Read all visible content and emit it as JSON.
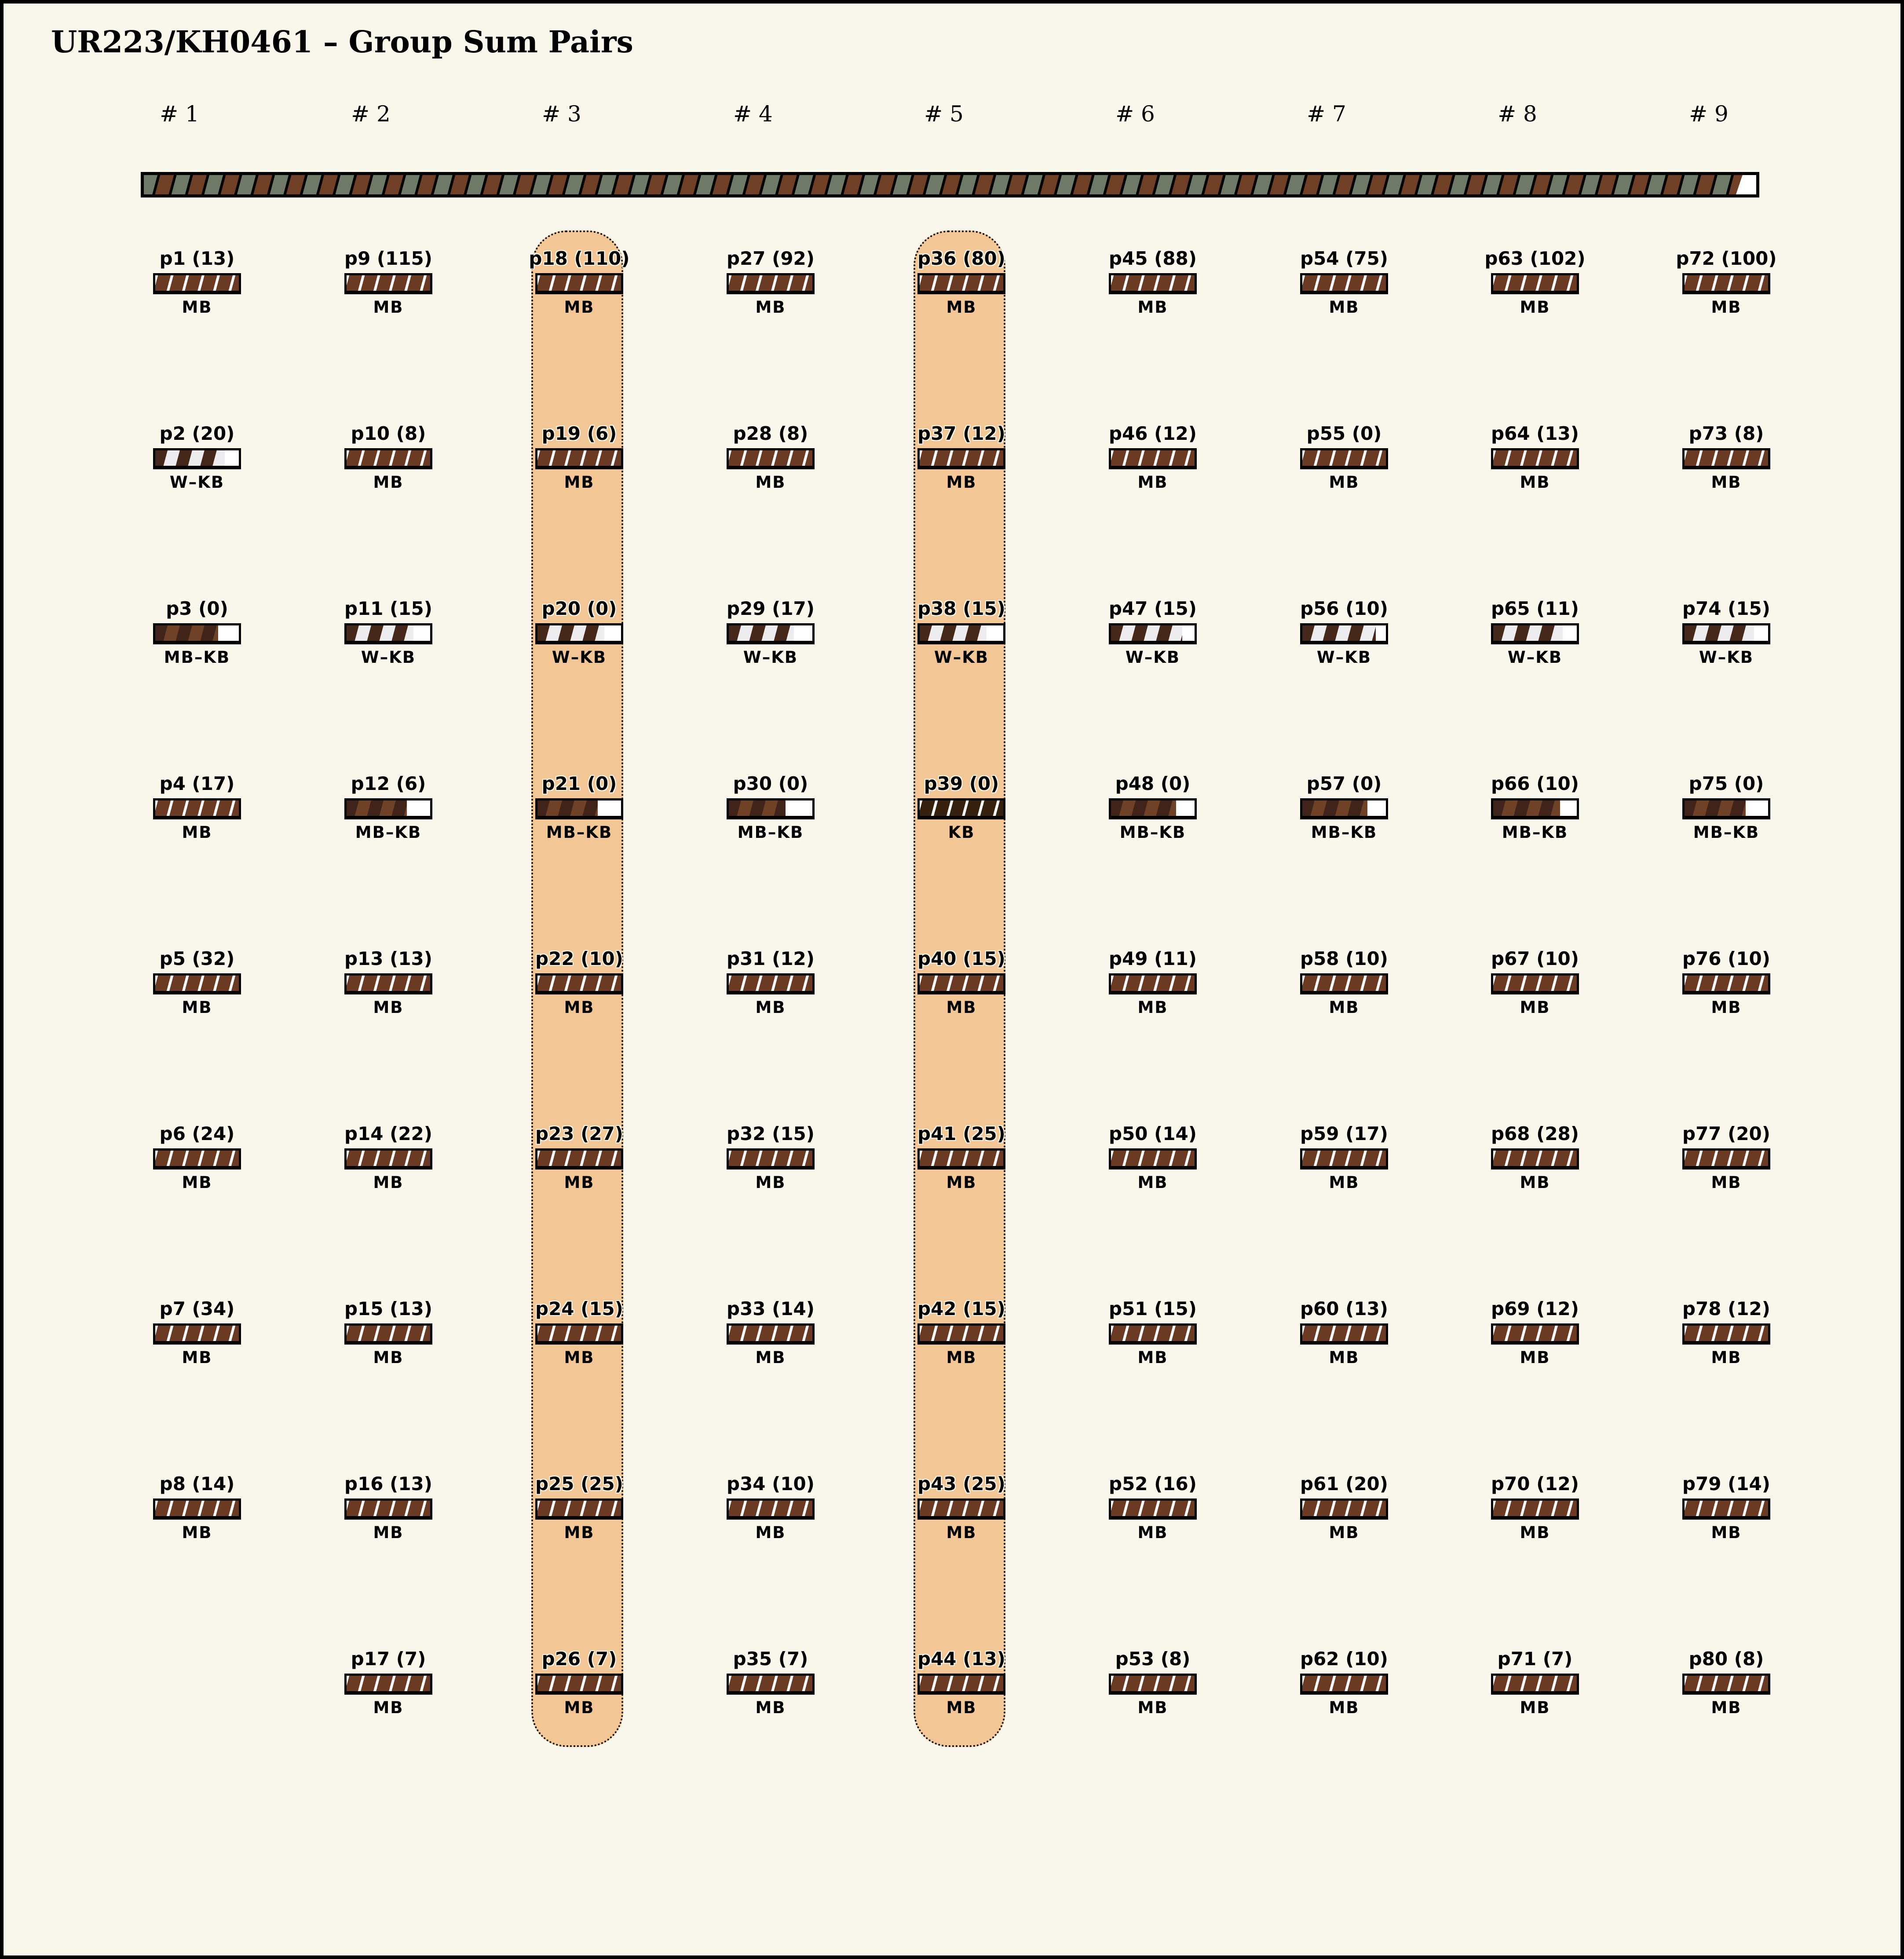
{
  "title": "UR223/KH0461 – Group Sum Pairs",
  "top_bar": {
    "name": "group-sum-bar",
    "stripe_color_a": "#6e7a67",
    "stripe_color_b": "#6f4026",
    "separator_color": "#000000",
    "end_segment_color": "#ffffff"
  },
  "highlight": {
    "color": "#f3c795",
    "highlighted_columns": [
      "# 3",
      "# 5"
    ]
  },
  "palette": {
    "background": "#faf8ed",
    "mb_brown": "#6b3a22",
    "kb_dark_brown": "#36210f",
    "wkb_dark": "#46281b",
    "wkb_light": "#edecef",
    "mbkb_dark": "#40241a",
    "mbkb_mid": "#6f4227",
    "bar_border": "#000000"
  },
  "kinds_legend": [
    "MB",
    "W–KB",
    "MB–KB",
    "KB"
  ],
  "columns": [
    {
      "header": "# 1",
      "highlight": false,
      "items": [
        {
          "label": "p1 (13)",
          "value": 13,
          "kind": "MB",
          "kind_key": "mb",
          "fill": 1
        },
        {
          "label": "p2 (20)",
          "value": 20,
          "kind": "W–KB",
          "kind_key": "wkb",
          "fill": 0.83
        },
        {
          "label": "p3 (0)",
          "value": 0,
          "kind": "MB–KB",
          "kind_key": "mbkb",
          "fill": 0.75
        },
        {
          "label": "p4 (17)",
          "value": 17,
          "kind": "MB",
          "kind_key": "mb",
          "fill": 1
        },
        {
          "label": "p5 (32)",
          "value": 32,
          "kind": "MB",
          "kind_key": "mb",
          "fill": 1
        },
        {
          "label": "p6 (24)",
          "value": 24,
          "kind": "MB",
          "kind_key": "mb",
          "fill": 1
        },
        {
          "label": "p7 (34)",
          "value": 34,
          "kind": "MB",
          "kind_key": "mb",
          "fill": 1
        },
        {
          "label": "p8 (14)",
          "value": 14,
          "kind": "MB",
          "kind_key": "mb",
          "fill": 1
        }
      ]
    },
    {
      "header": "# 2",
      "highlight": false,
      "items": [
        {
          "label": "p9 (115)",
          "value": 115,
          "kind": "MB",
          "kind_key": "mb",
          "fill": 1
        },
        {
          "label": "p10 (8)",
          "value": 8,
          "kind": "MB",
          "kind_key": "mb",
          "fill": 1
        },
        {
          "label": "p11 (15)",
          "value": 15,
          "kind": "W–KB",
          "kind_key": "wkb",
          "fill": 0.8
        },
        {
          "label": "p12 (6)",
          "value": 6,
          "kind": "MB–KB",
          "kind_key": "mbkb",
          "fill": 0.72
        },
        {
          "label": "p13 (13)",
          "value": 13,
          "kind": "MB",
          "kind_key": "mb",
          "fill": 1
        },
        {
          "label": "p14 (22)",
          "value": 22,
          "kind": "MB",
          "kind_key": "mb",
          "fill": 1
        },
        {
          "label": "p15 (13)",
          "value": 13,
          "kind": "MB",
          "kind_key": "mb",
          "fill": 1
        },
        {
          "label": "p16 (13)",
          "value": 13,
          "kind": "MB",
          "kind_key": "mb",
          "fill": 1
        },
        {
          "label": "p17 (7)",
          "value": 7,
          "kind": "MB",
          "kind_key": "mb",
          "fill": 1
        }
      ]
    },
    {
      "header": "# 3",
      "highlight": true,
      "items": [
        {
          "label": "p18 (110)",
          "value": 110,
          "kind": "MB",
          "kind_key": "mb",
          "fill": 1
        },
        {
          "label": "p19 (6)",
          "value": 6,
          "kind": "MB",
          "kind_key": "mb",
          "fill": 1
        },
        {
          "label": "p20 (0)",
          "value": 0,
          "kind": "W–KB",
          "kind_key": "wkb",
          "fill": 0.8
        },
        {
          "label": "p21 (0)",
          "value": 0,
          "kind": "MB–KB",
          "kind_key": "mbkb",
          "fill": 0.72
        },
        {
          "label": "p22 (10)",
          "value": 10,
          "kind": "MB",
          "kind_key": "mb",
          "fill": 1
        },
        {
          "label": "p23 (27)",
          "value": 27,
          "kind": "MB",
          "kind_key": "mb",
          "fill": 1
        },
        {
          "label": "p24 (15)",
          "value": 15,
          "kind": "MB",
          "kind_key": "mb",
          "fill": 1
        },
        {
          "label": "p25 (25)",
          "value": 25,
          "kind": "MB",
          "kind_key": "mb",
          "fill": 1
        },
        {
          "label": "p26 (7)",
          "value": 7,
          "kind": "MB",
          "kind_key": "mb",
          "fill": 1
        }
      ]
    },
    {
      "header": "# 4",
      "highlight": false,
      "items": [
        {
          "label": "p27 (92)",
          "value": 92,
          "kind": "MB",
          "kind_key": "mb",
          "fill": 1
        },
        {
          "label": "p28 (8)",
          "value": 8,
          "kind": "MB",
          "kind_key": "mb",
          "fill": 1
        },
        {
          "label": "p29 (17)",
          "value": 17,
          "kind": "W–KB",
          "kind_key": "wkb",
          "fill": 0.78
        },
        {
          "label": "p30 (0)",
          "value": 0,
          "kind": "MB–KB",
          "kind_key": "mbkb",
          "fill": 0.68
        },
        {
          "label": "p31 (12)",
          "value": 12,
          "kind": "MB",
          "kind_key": "mb",
          "fill": 1
        },
        {
          "label": "p32 (15)",
          "value": 15,
          "kind": "MB",
          "kind_key": "mb",
          "fill": 1
        },
        {
          "label": "p33 (14)",
          "value": 14,
          "kind": "MB",
          "kind_key": "mb",
          "fill": 1
        },
        {
          "label": "p34 (10)",
          "value": 10,
          "kind": "MB",
          "kind_key": "mb",
          "fill": 1
        },
        {
          "label": "p35 (7)",
          "value": 7,
          "kind": "MB",
          "kind_key": "mb",
          "fill": 1
        }
      ]
    },
    {
      "header": "# 5",
      "highlight": true,
      "items": [
        {
          "label": "p36 (80)",
          "value": 80,
          "kind": "MB",
          "kind_key": "mb",
          "fill": 1
        },
        {
          "label": "p37 (12)",
          "value": 12,
          "kind": "MB",
          "kind_key": "mb",
          "fill": 1
        },
        {
          "label": "p38 (15)",
          "value": 15,
          "kind": "W–KB",
          "kind_key": "wkb",
          "fill": 0.8
        },
        {
          "label": "p39 (0)",
          "value": 0,
          "kind": "KB",
          "kind_key": "kb",
          "fill": 1
        },
        {
          "label": "p40 (15)",
          "value": 15,
          "kind": "MB",
          "kind_key": "mb",
          "fill": 1
        },
        {
          "label": "p41 (25)",
          "value": 25,
          "kind": "MB",
          "kind_key": "mb",
          "fill": 1
        },
        {
          "label": "p42 (15)",
          "value": 15,
          "kind": "MB",
          "kind_key": "mb",
          "fill": 1
        },
        {
          "label": "p43 (25)",
          "value": 25,
          "kind": "MB",
          "kind_key": "mb",
          "fill": 1
        },
        {
          "label": "p44 (13)",
          "value": 13,
          "kind": "MB",
          "kind_key": "mb",
          "fill": 1
        }
      ]
    },
    {
      "header": "# 6",
      "highlight": false,
      "items": [
        {
          "label": "p45 (88)",
          "value": 88,
          "kind": "MB",
          "kind_key": "mb",
          "fill": 1
        },
        {
          "label": "p46 (12)",
          "value": 12,
          "kind": "MB",
          "kind_key": "mb",
          "fill": 1
        },
        {
          "label": "p47 (15)",
          "value": 15,
          "kind": "W–KB",
          "kind_key": "wkb",
          "fill": 0.85
        },
        {
          "label": "p48 (0)",
          "value": 0,
          "kind": "MB–KB",
          "kind_key": "mbkb",
          "fill": 0.78
        },
        {
          "label": "p49 (11)",
          "value": 11,
          "kind": "MB",
          "kind_key": "mb",
          "fill": 1
        },
        {
          "label": "p50 (14)",
          "value": 14,
          "kind": "MB",
          "kind_key": "mb",
          "fill": 1
        },
        {
          "label": "p51 (15)",
          "value": 15,
          "kind": "MB",
          "kind_key": "mb",
          "fill": 1
        },
        {
          "label": "p52 (16)",
          "value": 16,
          "kind": "MB",
          "kind_key": "mb",
          "fill": 1
        },
        {
          "label": "p53 (8)",
          "value": 8,
          "kind": "MB",
          "kind_key": "mb",
          "fill": 1
        }
      ]
    },
    {
      "header": "# 7",
      "highlight": false,
      "items": [
        {
          "label": "p54 (75)",
          "value": 75,
          "kind": "MB",
          "kind_key": "mb",
          "fill": 1
        },
        {
          "label": "p55 (0)",
          "value": 0,
          "kind": "MB",
          "kind_key": "mb",
          "fill": 1
        },
        {
          "label": "p56 (10)",
          "value": 10,
          "kind": "W–KB",
          "kind_key": "wkb",
          "fill": 0.88
        },
        {
          "label": "p57 (0)",
          "value": 0,
          "kind": "MB–KB",
          "kind_key": "mbkb",
          "fill": 0.78
        },
        {
          "label": "p58 (10)",
          "value": 10,
          "kind": "MB",
          "kind_key": "mb",
          "fill": 1
        },
        {
          "label": "p59 (17)",
          "value": 17,
          "kind": "MB",
          "kind_key": "mb",
          "fill": 1
        },
        {
          "label": "p60 (13)",
          "value": 13,
          "kind": "MB",
          "kind_key": "mb",
          "fill": 1
        },
        {
          "label": "p61 (20)",
          "value": 20,
          "kind": "MB",
          "kind_key": "mb",
          "fill": 1
        },
        {
          "label": "p62 (10)",
          "value": 10,
          "kind": "MB",
          "kind_key": "mb",
          "fill": 1
        }
      ]
    },
    {
      "header": "# 8",
      "highlight": false,
      "items": [
        {
          "label": "p63 (102)",
          "value": 102,
          "kind": "MB",
          "kind_key": "mb",
          "fill": 1
        },
        {
          "label": "p64 (13)",
          "value": 13,
          "kind": "MB",
          "kind_key": "mb",
          "fill": 1
        },
        {
          "label": "p65 (11)",
          "value": 11,
          "kind": "W–KB",
          "kind_key": "wkb",
          "fill": 0.83
        },
        {
          "label": "p66 (10)",
          "value": 10,
          "kind": "MB–KB",
          "kind_key": "mbkb",
          "fill": 0.8
        },
        {
          "label": "p67 (10)",
          "value": 10,
          "kind": "MB",
          "kind_key": "mb",
          "fill": 1
        },
        {
          "label": "p68 (28)",
          "value": 28,
          "kind": "MB",
          "kind_key": "mb",
          "fill": 1
        },
        {
          "label": "p69 (12)",
          "value": 12,
          "kind": "MB",
          "kind_key": "mb",
          "fill": 1
        },
        {
          "label": "p70 (12)",
          "value": 12,
          "kind": "MB",
          "kind_key": "mb",
          "fill": 1
        },
        {
          "label": "p71 (7)",
          "value": 7,
          "kind": "MB",
          "kind_key": "mb",
          "fill": 1
        }
      ]
    },
    {
      "header": "# 9",
      "highlight": false,
      "items": [
        {
          "label": "p72 (100)",
          "value": 100,
          "kind": "MB",
          "kind_key": "mb",
          "fill": 1
        },
        {
          "label": "p73 (8)",
          "value": 8,
          "kind": "MB",
          "kind_key": "mb",
          "fill": 1
        },
        {
          "label": "p74 (15)",
          "value": 15,
          "kind": "W–KB",
          "kind_key": "wkb",
          "fill": 0.83
        },
        {
          "label": "p75 (0)",
          "value": 0,
          "kind": "MB–KB",
          "kind_key": "mbkb",
          "fill": 0.73
        },
        {
          "label": "p76 (10)",
          "value": 10,
          "kind": "MB",
          "kind_key": "mb",
          "fill": 1
        },
        {
          "label": "p77 (20)",
          "value": 20,
          "kind": "MB",
          "kind_key": "mb",
          "fill": 1
        },
        {
          "label": "p78 (12)",
          "value": 12,
          "kind": "MB",
          "kind_key": "mb",
          "fill": 1
        },
        {
          "label": "p79 (14)",
          "value": 14,
          "kind": "MB",
          "kind_key": "mb",
          "fill": 1
        },
        {
          "label": "p80 (8)",
          "value": 8,
          "kind": "MB",
          "kind_key": "mb",
          "fill": 1
        }
      ]
    }
  ]
}
